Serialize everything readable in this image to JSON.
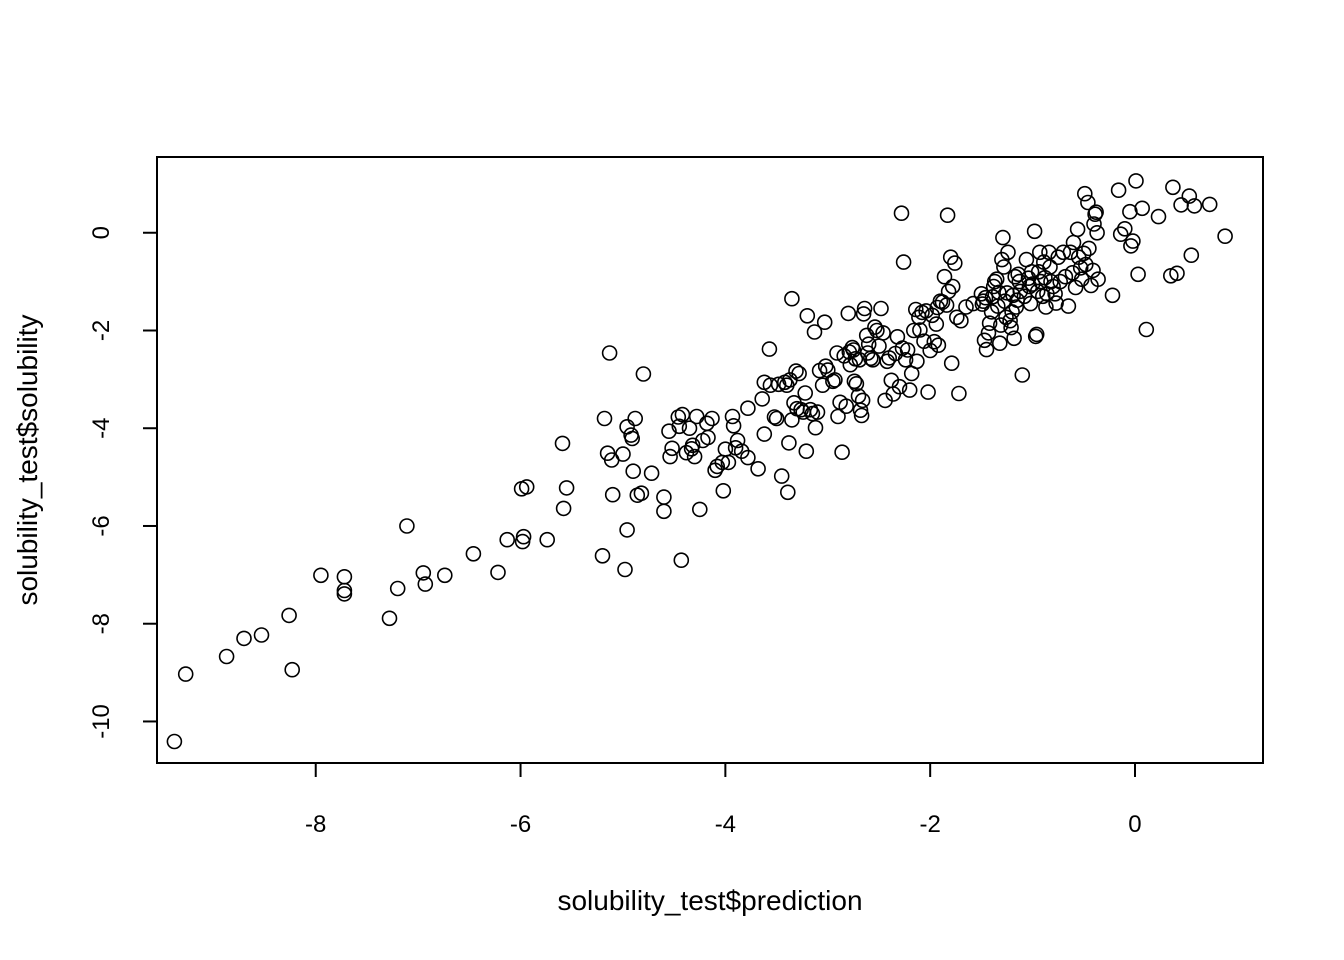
{
  "chart_data": {
    "type": "scatter",
    "title": "",
    "xlabel": "solubility_test$prediction",
    "ylabel": "solubility_test$solubility",
    "xlim": [
      -9.55,
      1.25
    ],
    "ylim": [
      -10.85,
      1.55
    ],
    "x_ticks": [
      -8,
      -6,
      -4,
      -2,
      0
    ],
    "x_tick_labels": [
      "-8",
      "-6",
      "-4",
      "-2",
      "0"
    ],
    "y_ticks": [
      -10,
      -8,
      -6,
      -4,
      -2,
      0
    ],
    "y_tick_labels": [
      "-10",
      "-8",
      "-6",
      "-4",
      "-2",
      "0"
    ],
    "grid": false,
    "marker": "open-circle",
    "marker_color": "#000000",
    "points": [
      [
        -9.38,
        -10.41
      ],
      [
        -9.27,
        -9.03
      ],
      [
        -8.87,
        -8.67
      ],
      [
        -8.7,
        -8.3
      ],
      [
        -8.53,
        -8.23
      ],
      [
        -8.26,
        -7.83
      ],
      [
        -8.23,
        -8.94
      ],
      [
        -7.95,
        -7.01
      ],
      [
        -7.72,
        -7.04
      ],
      [
        -7.72,
        -7.32
      ],
      [
        -7.72,
        -7.39
      ],
      [
        -7.28,
        -7.89
      ],
      [
        -7.2,
        -7.28
      ],
      [
        -7.11,
        -6.0
      ],
      [
        -6.95,
        -6.96
      ],
      [
        -6.93,
        -7.19
      ],
      [
        -6.74,
        -7.01
      ],
      [
        -6.46,
        -6.57
      ],
      [
        -6.22,
        -6.95
      ],
      [
        -6.13,
        -6.28
      ],
      [
        -5.99,
        -5.24
      ],
      [
        -5.98,
        -6.32
      ],
      [
        -5.97,
        -6.22
      ],
      [
        -5.94,
        -5.2
      ],
      [
        -5.74,
        -6.28
      ],
      [
        -5.59,
        -4.31
      ],
      [
        -5.58,
        -5.64
      ],
      [
        -5.55,
        -5.22
      ],
      [
        -5.2,
        -6.61
      ],
      [
        -5.18,
        -3.8
      ],
      [
        -5.15,
        -4.51
      ],
      [
        -5.13,
        -2.46
      ],
      [
        -5.11,
        -4.65
      ],
      [
        -5.1,
        -5.36
      ],
      [
        -5.0,
        -4.53
      ],
      [
        -4.98,
        -6.89
      ],
      [
        -4.96,
        -6.08
      ],
      [
        -4.96,
        -3.97
      ],
      [
        -4.92,
        -4.14
      ],
      [
        -4.91,
        -4.21
      ],
      [
        -4.9,
        -4.88
      ],
      [
        -4.88,
        -3.8
      ],
      [
        -4.86,
        -5.37
      ],
      [
        -4.82,
        -5.33
      ],
      [
        -4.8,
        -2.89
      ],
      [
        -4.72,
        -4.92
      ],
      [
        -4.6,
        -5.41
      ],
      [
        -4.6,
        -5.7
      ],
      [
        -4.55,
        -4.06
      ],
      [
        -4.54,
        -4.58
      ],
      [
        -4.52,
        -4.41
      ],
      [
        -4.46,
        -3.77
      ],
      [
        -4.45,
        -3.96
      ],
      [
        -4.43,
        -6.7
      ],
      [
        -4.42,
        -3.72
      ],
      [
        -4.38,
        -4.5
      ],
      [
        -4.35,
        -4.0
      ],
      [
        -4.33,
        -4.42
      ],
      [
        -4.32,
        -4.35
      ],
      [
        -4.3,
        -4.58
      ],
      [
        -4.28,
        -3.76
      ],
      [
        -4.25,
        -5.66
      ],
      [
        -4.22,
        -4.25
      ],
      [
        -4.18,
        -3.9
      ],
      [
        -4.17,
        -4.19
      ],
      [
        -4.13,
        -3.8
      ],
      [
        -4.1,
        -4.86
      ],
      [
        -4.08,
        -4.78
      ],
      [
        -4.03,
        -4.7
      ],
      [
        -4.02,
        -5.28
      ],
      [
        -4.0,
        -4.43
      ],
      [
        -3.97,
        -4.7
      ],
      [
        -3.93,
        -3.76
      ],
      [
        -3.92,
        -3.95
      ],
      [
        -3.9,
        -4.4
      ],
      [
        -3.88,
        -4.25
      ],
      [
        -3.84,
        -4.47
      ],
      [
        -3.78,
        -4.6
      ],
      [
        -3.78,
        -3.59
      ],
      [
        -3.68,
        -4.83
      ],
      [
        -3.64,
        -3.4
      ],
      [
        -3.62,
        -4.12
      ],
      [
        -3.62,
        -3.06
      ],
      [
        -3.57,
        -2.38
      ],
      [
        -3.56,
        -3.12
      ],
      [
        -3.52,
        -3.77
      ],
      [
        -3.5,
        -3.8
      ],
      [
        -3.48,
        -3.1
      ],
      [
        -3.45,
        -4.98
      ],
      [
        -3.42,
        -3.06
      ],
      [
        -3.4,
        -3.12
      ],
      [
        -3.39,
        -5.31
      ],
      [
        -3.38,
        -4.3
      ],
      [
        -3.37,
        -3.01
      ],
      [
        -3.35,
        -1.35
      ],
      [
        -3.35,
        -3.83
      ],
      [
        -3.33,
        -3.48
      ],
      [
        -3.31,
        -2.83
      ],
      [
        -3.3,
        -3.6
      ],
      [
        -3.28,
        -2.88
      ],
      [
        -3.26,
        -3.62
      ],
      [
        -3.24,
        -3.67
      ],
      [
        -3.22,
        -3.28
      ],
      [
        -3.21,
        -4.47
      ],
      [
        -3.2,
        -1.7
      ],
      [
        -3.17,
        -3.62
      ],
      [
        -3.15,
        -3.7
      ],
      [
        -3.13,
        -2.03
      ],
      [
        -3.12,
        -3.99
      ],
      [
        -3.1,
        -3.67
      ],
      [
        -3.08,
        -2.82
      ],
      [
        -3.05,
        -3.12
      ],
      [
        -3.03,
        -1.83
      ],
      [
        -3.02,
        -2.73
      ],
      [
        -3.0,
        -2.81
      ],
      [
        -2.95,
        -3.04
      ],
      [
        -2.93,
        -3.01
      ],
      [
        -2.91,
        -2.46
      ],
      [
        -2.9,
        -3.76
      ],
      [
        -2.88,
        -3.47
      ],
      [
        -2.86,
        -4.49
      ],
      [
        -2.84,
        -2.52
      ],
      [
        -2.82,
        -3.55
      ],
      [
        -2.8,
        -1.65
      ],
      [
        -2.79,
        -2.44
      ],
      [
        -2.78,
        -2.7
      ],
      [
        -2.76,
        -2.35
      ],
      [
        -2.75,
        -2.4
      ],
      [
        -2.74,
        -3.04
      ],
      [
        -2.73,
        -2.58
      ],
      [
        -2.72,
        -3.09
      ],
      [
        -2.7,
        -3.34
      ],
      [
        -2.69,
        -2.6
      ],
      [
        -2.68,
        -3.63
      ],
      [
        -2.67,
        -3.74
      ],
      [
        -2.66,
        -3.43
      ],
      [
        -2.65,
        -1.66
      ],
      [
        -2.64,
        -1.55
      ],
      [
        -2.62,
        -2.1
      ],
      [
        -2.61,
        -2.46
      ],
      [
        -2.6,
        -2.28
      ],
      [
        -2.58,
        -2.57
      ],
      [
        -2.56,
        -2.6
      ],
      [
        -2.54,
        -1.93
      ],
      [
        -2.52,
        -2.0
      ],
      [
        -2.5,
        -2.32
      ],
      [
        -2.48,
        -1.55
      ],
      [
        -2.46,
        -2.05
      ],
      [
        -2.44,
        -3.43
      ],
      [
        -2.42,
        -2.63
      ],
      [
        -2.4,
        -2.56
      ],
      [
        -2.38,
        -3.02
      ],
      [
        -2.36,
        -3.3
      ],
      [
        -2.34,
        -2.47
      ],
      [
        -2.32,
        -2.13
      ],
      [
        -2.3,
        -3.15
      ],
      [
        -2.28,
        0.4
      ],
      [
        -2.27,
        -2.36
      ],
      [
        -2.26,
        -0.6
      ],
      [
        -2.24,
        -2.6
      ],
      [
        -2.22,
        -2.4
      ],
      [
        -2.2,
        -3.22
      ],
      [
        -2.18,
        -2.88
      ],
      [
        -2.16,
        -2.0
      ],
      [
        -2.14,
        -1.57
      ],
      [
        -2.13,
        -2.63
      ],
      [
        -2.11,
        -1.73
      ],
      [
        -2.1,
        -1.99
      ],
      [
        -2.08,
        -1.63
      ],
      [
        -2.06,
        -2.22
      ],
      [
        -2.04,
        -1.6
      ],
      [
        -2.02,
        -3.26
      ],
      [
        -2.0,
        -2.41
      ],
      [
        -1.98,
        -1.69
      ],
      [
        -1.96,
        -2.23
      ],
      [
        -1.94,
        -1.87
      ],
      [
        -1.93,
        -1.53
      ],
      [
        -1.92,
        -2.3
      ],
      [
        -1.9,
        -1.4
      ],
      [
        -1.88,
        -1.42
      ],
      [
        -1.86,
        -0.9
      ],
      [
        -1.84,
        -1.48
      ],
      [
        -1.83,
        0.36
      ],
      [
        -1.82,
        -1.2
      ],
      [
        -1.8,
        -0.5
      ],
      [
        -1.79,
        -2.67
      ],
      [
        -1.78,
        -1.1
      ],
      [
        -1.76,
        -0.62
      ],
      [
        -1.74,
        -1.73
      ],
      [
        -1.72,
        -3.29
      ],
      [
        -1.7,
        -1.8
      ],
      [
        -1.65,
        -1.52
      ],
      [
        -1.58,
        -1.45
      ],
      [
        -1.5,
        -1.25
      ],
      [
        -1.49,
        -1.46
      ],
      [
        -1.48,
        -1.4
      ],
      [
        -1.47,
        -2.2
      ],
      [
        -1.46,
        -1.33
      ],
      [
        -1.45,
        -2.39
      ],
      [
        -1.43,
        -2.05
      ],
      [
        -1.42,
        -1.85
      ],
      [
        -1.4,
        -1.62
      ],
      [
        -1.39,
        -1.31
      ],
      [
        -1.38,
        -1.1
      ],
      [
        -1.37,
        -1.0
      ],
      [
        -1.35,
        -0.95
      ],
      [
        -1.34,
        -1.5
      ],
      [
        -1.33,
        -1.22
      ],
      [
        -1.32,
        -2.26
      ],
      [
        -1.31,
        -1.89
      ],
      [
        -1.3,
        -0.55
      ],
      [
        -1.29,
        -0.1
      ],
      [
        -1.28,
        -0.7
      ],
      [
        -1.27,
        -1.4
      ],
      [
        -1.26,
        -1.73
      ],
      [
        -1.25,
        -1.23
      ],
      [
        -1.24,
        -0.4
      ],
      [
        -1.22,
        -1.8
      ],
      [
        -1.21,
        -1.94
      ],
      [
        -1.2,
        -1.62
      ],
      [
        -1.19,
        -1.28
      ],
      [
        -1.18,
        -2.16
      ],
      [
        -1.17,
        -0.9
      ],
      [
        -1.16,
        -1.52
      ],
      [
        -1.15,
        -1.38
      ],
      [
        -1.14,
        -0.85
      ],
      [
        -1.13,
        -1.0
      ],
      [
        -1.12,
        -1.2
      ],
      [
        -1.1,
        -2.91
      ],
      [
        -1.08,
        -1.3
      ],
      [
        -1.06,
        -0.55
      ],
      [
        -1.04,
        -0.93
      ],
      [
        -1.03,
        -1.1
      ],
      [
        -1.02,
        -1.45
      ],
      [
        -1.01,
        -0.8
      ],
      [
        -1.0,
        -1.05
      ],
      [
        -0.98,
        0.03
      ],
      [
        -0.97,
        -2.12
      ],
      [
        -0.96,
        -2.08
      ],
      [
        -0.95,
        -1.2
      ],
      [
        -0.94,
        -0.8
      ],
      [
        -0.93,
        -0.4
      ],
      [
        -0.92,
        -1.0
      ],
      [
        -0.9,
        -1.3
      ],
      [
        -0.89,
        -0.6
      ],
      [
        -0.88,
        -0.92
      ],
      [
        -0.87,
        -1.52
      ],
      [
        -0.86,
        -1.25
      ],
      [
        -0.84,
        -0.4
      ],
      [
        -0.83,
        -0.7
      ],
      [
        -0.82,
        -1.0
      ],
      [
        -0.8,
        -1.1
      ],
      [
        -0.78,
        -1.25
      ],
      [
        -0.77,
        -1.44
      ],
      [
        -0.75,
        -0.5
      ],
      [
        -0.73,
        -1.0
      ],
      [
        -0.7,
        -0.4
      ],
      [
        -0.68,
        -0.9
      ],
      [
        -0.65,
        -1.5
      ],
      [
        -0.63,
        -0.4
      ],
      [
        -0.61,
        -0.82
      ],
      [
        -0.6,
        -0.2
      ],
      [
        -0.58,
        -1.12
      ],
      [
        -0.56,
        0.07
      ],
      [
        -0.55,
        -0.5
      ],
      [
        -0.53,
        -0.72
      ],
      [
        -0.52,
        -0.95
      ],
      [
        -0.5,
        -0.42
      ],
      [
        -0.49,
        0.8
      ],
      [
        -0.48,
        -0.65
      ],
      [
        -0.46,
        0.62
      ],
      [
        -0.45,
        -0.32
      ],
      [
        -0.43,
        -1.08
      ],
      [
        -0.41,
        -0.77
      ],
      [
        -0.4,
        0.18
      ],
      [
        -0.39,
        0.38
      ],
      [
        -0.38,
        0.42
      ],
      [
        -0.37,
        0.0
      ],
      [
        -0.36,
        -0.95
      ],
      [
        -0.22,
        -1.28
      ],
      [
        -0.16,
        0.87
      ],
      [
        -0.14,
        -0.03
      ],
      [
        -0.1,
        0.08
      ],
      [
        -0.05,
        0.43
      ],
      [
        -0.04,
        -0.27
      ],
      [
        -0.02,
        -0.17
      ],
      [
        0.01,
        1.06
      ],
      [
        0.03,
        -0.85
      ],
      [
        0.07,
        0.5
      ],
      [
        0.11,
        -1.98
      ],
      [
        0.23,
        0.33
      ],
      [
        0.35,
        -0.88
      ],
      [
        0.37,
        0.93
      ],
      [
        0.41,
        -0.83
      ],
      [
        0.45,
        0.57
      ],
      [
        0.53,
        0.75
      ],
      [
        0.55,
        -0.46
      ],
      [
        0.58,
        0.55
      ],
      [
        0.73,
        0.58
      ],
      [
        0.88,
        -0.07
      ]
    ]
  }
}
